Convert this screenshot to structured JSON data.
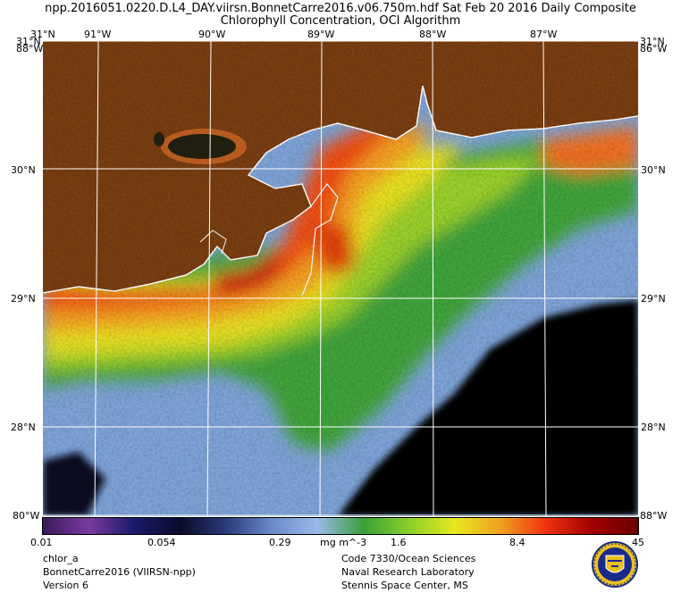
{
  "title_line1": "npp.2016051.0220.D.L4_DAY.viirsn.BonnetCarre2016.v06.750m.hdf    Sat Feb 20 2016 Daily Composite",
  "title_line2": "Chlorophyll Concentration, OCI Algorithm",
  "axes": {
    "top_labels": [
      "31°N",
      "91°W",
      "90°W",
      "89°W",
      "88°W",
      "87°W"
    ],
    "left_labels": [
      "30°N",
      "29°N",
      "28°N"
    ],
    "right_labels": [
      "30°N",
      "29°N",
      "28°N"
    ],
    "corner_top_left": "31°N",
    "corner_top_left_sub": "88°W",
    "corner_top_right": "31°N",
    "corner_top_right_sub": "86°W",
    "corner_bottom_left": "80°W",
    "corner_bottom_right": "88°W"
  },
  "colorbar": {
    "ticks": [
      "0.01",
      "0.054",
      "0.29",
      "1.6",
      "8.4",
      "45"
    ],
    "units": "mg m^-3",
    "colors": [
      "#3a1a5a",
      "#7a3aa0",
      "#1a1a6a",
      "#0a0a2a",
      "#2a3a7a",
      "#6a8ac8",
      "#9ab8e8",
      "#3aa03a",
      "#8ad02a",
      "#e8e820",
      "#f0a020",
      "#f03010",
      "#a00000",
      "#6a0000"
    ]
  },
  "colors": {
    "land": "#7a3e12",
    "deep_water": "#000000",
    "clear_water": "#8aaee0",
    "grid": "#ffffff"
  },
  "footer_left": [
    "chlor_a",
    "BonnetCarre2016 (VIIRSN-npp)",
    "Version 6"
  ],
  "footer_right": [
    "Code 7330/Ocean Sciences",
    "Naval Research Laboratory",
    "Stennis Space Center, MS"
  ]
}
